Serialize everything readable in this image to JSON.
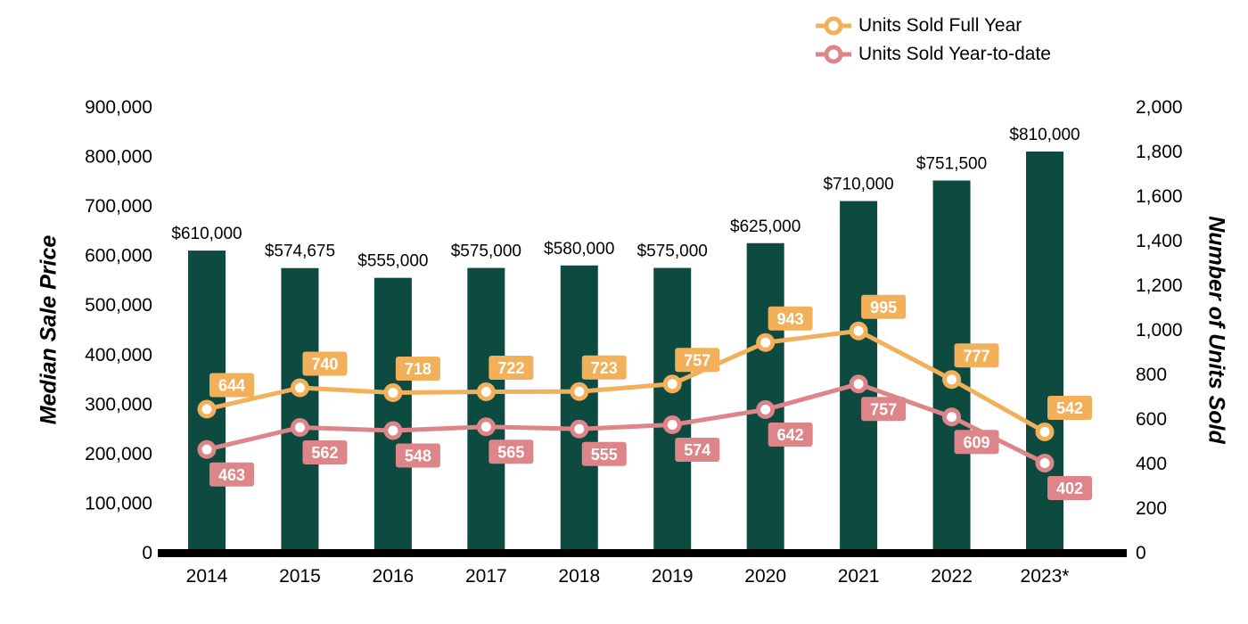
{
  "legend": {
    "items": [
      {
        "label": "Units Sold Full Year",
        "color": "#f3b05a"
      },
      {
        "label": "Units Sold Year-to-date",
        "color": "#dd8589"
      }
    ]
  },
  "chart_data": {
    "type": "bar+line",
    "title": "",
    "categories": [
      "2014",
      "2015",
      "2016",
      "2017",
      "2018",
      "2019",
      "2020",
      "2021",
      "2022",
      "2023*"
    ],
    "bar_series": {
      "name": "Median Sale Price",
      "color": "#0d4a40",
      "values": [
        610000,
        574675,
        555000,
        575000,
        580000,
        575000,
        625000,
        710000,
        751500,
        810000
      ],
      "labels": [
        "$610,000",
        "$574,675",
        "$555,000",
        "$575,000",
        "$580,000",
        "$575,000",
        "$625,000",
        "$710,000",
        "$751,500",
        "$810,000"
      ]
    },
    "line_series": [
      {
        "name": "Units Sold Full Year",
        "color": "#f3b05a",
        "values": [
          644,
          740,
          718,
          722,
          723,
          757,
          943,
          995,
          777,
          542
        ]
      },
      {
        "name": "Units Sold Year-to-date",
        "color": "#dd8589",
        "values": [
          463,
          562,
          548,
          565,
          555,
          574,
          642,
          757,
          609,
          402
        ]
      }
    ],
    "left_axis": {
      "title": "Median Sale Price",
      "min": 0,
      "max": 900000,
      "step": 100000,
      "tick_labels": [
        "0",
        "100,000",
        "200,000",
        "300,000",
        "400,000",
        "500,000",
        "600,000",
        "700,000",
        "800,000",
        "900,000"
      ]
    },
    "right_axis": {
      "title": "Number of Units Sold",
      "min": 0,
      "max": 2000,
      "step": 200,
      "tick_labels": [
        "0",
        "200",
        "400",
        "600",
        "800",
        "1,000",
        "1,200",
        "1,400",
        "1,600",
        "1,800",
        "2,000"
      ]
    },
    "grid": false,
    "legend_position": "top-right"
  }
}
